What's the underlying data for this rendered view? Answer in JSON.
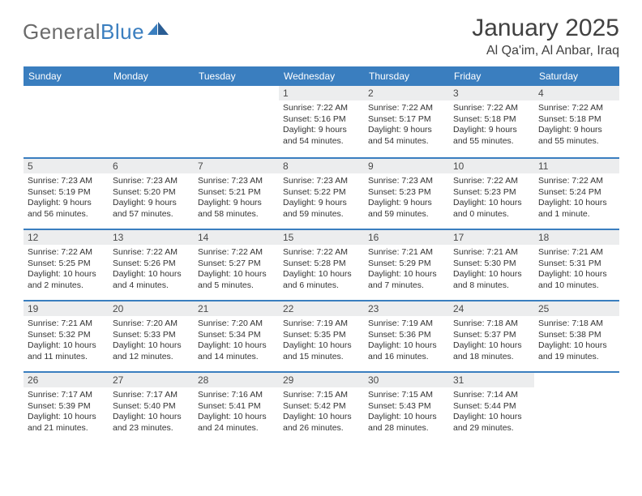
{
  "brand": {
    "name_part1": "General",
    "name_part2": "Blue"
  },
  "title": "January 2025",
  "location": "Al Qa'im, Al Anbar, Iraq",
  "colors": {
    "header_bg": "#3a7ebf",
    "header_text": "#ffffff",
    "daybar_bg": "#ecedee",
    "week_divider": "#3a7ebf",
    "text": "#333333",
    "logo_gray": "#6b6b6b",
    "logo_blue": "#3a7ebf",
    "page_bg": "#ffffff"
  },
  "typography": {
    "title_fontsize": 30,
    "location_fontsize": 16,
    "dayhead_fontsize": 12,
    "info_fontsize": 10.5
  },
  "day_headers": [
    "Sunday",
    "Monday",
    "Tuesday",
    "Wednesday",
    "Thursday",
    "Friday",
    "Saturday"
  ],
  "weeks": [
    [
      {
        "empty": true
      },
      {
        "empty": true
      },
      {
        "empty": true
      },
      {
        "day": "1",
        "sunrise": "Sunrise: 7:22 AM",
        "sunset": "Sunset: 5:16 PM",
        "daylight1": "Daylight: 9 hours",
        "daylight2": "and 54 minutes."
      },
      {
        "day": "2",
        "sunrise": "Sunrise: 7:22 AM",
        "sunset": "Sunset: 5:17 PM",
        "daylight1": "Daylight: 9 hours",
        "daylight2": "and 54 minutes."
      },
      {
        "day": "3",
        "sunrise": "Sunrise: 7:22 AM",
        "sunset": "Sunset: 5:18 PM",
        "daylight1": "Daylight: 9 hours",
        "daylight2": "and 55 minutes."
      },
      {
        "day": "4",
        "sunrise": "Sunrise: 7:22 AM",
        "sunset": "Sunset: 5:18 PM",
        "daylight1": "Daylight: 9 hours",
        "daylight2": "and 55 minutes."
      }
    ],
    [
      {
        "day": "5",
        "sunrise": "Sunrise: 7:23 AM",
        "sunset": "Sunset: 5:19 PM",
        "daylight1": "Daylight: 9 hours",
        "daylight2": "and 56 minutes."
      },
      {
        "day": "6",
        "sunrise": "Sunrise: 7:23 AM",
        "sunset": "Sunset: 5:20 PM",
        "daylight1": "Daylight: 9 hours",
        "daylight2": "and 57 minutes."
      },
      {
        "day": "7",
        "sunrise": "Sunrise: 7:23 AM",
        "sunset": "Sunset: 5:21 PM",
        "daylight1": "Daylight: 9 hours",
        "daylight2": "and 58 minutes."
      },
      {
        "day": "8",
        "sunrise": "Sunrise: 7:23 AM",
        "sunset": "Sunset: 5:22 PM",
        "daylight1": "Daylight: 9 hours",
        "daylight2": "and 59 minutes."
      },
      {
        "day": "9",
        "sunrise": "Sunrise: 7:23 AM",
        "sunset": "Sunset: 5:23 PM",
        "daylight1": "Daylight: 9 hours",
        "daylight2": "and 59 minutes."
      },
      {
        "day": "10",
        "sunrise": "Sunrise: 7:22 AM",
        "sunset": "Sunset: 5:23 PM",
        "daylight1": "Daylight: 10 hours",
        "daylight2": "and 0 minutes."
      },
      {
        "day": "11",
        "sunrise": "Sunrise: 7:22 AM",
        "sunset": "Sunset: 5:24 PM",
        "daylight1": "Daylight: 10 hours",
        "daylight2": "and 1 minute."
      }
    ],
    [
      {
        "day": "12",
        "sunrise": "Sunrise: 7:22 AM",
        "sunset": "Sunset: 5:25 PM",
        "daylight1": "Daylight: 10 hours",
        "daylight2": "and 2 minutes."
      },
      {
        "day": "13",
        "sunrise": "Sunrise: 7:22 AM",
        "sunset": "Sunset: 5:26 PM",
        "daylight1": "Daylight: 10 hours",
        "daylight2": "and 4 minutes."
      },
      {
        "day": "14",
        "sunrise": "Sunrise: 7:22 AM",
        "sunset": "Sunset: 5:27 PM",
        "daylight1": "Daylight: 10 hours",
        "daylight2": "and 5 minutes."
      },
      {
        "day": "15",
        "sunrise": "Sunrise: 7:22 AM",
        "sunset": "Sunset: 5:28 PM",
        "daylight1": "Daylight: 10 hours",
        "daylight2": "and 6 minutes."
      },
      {
        "day": "16",
        "sunrise": "Sunrise: 7:21 AM",
        "sunset": "Sunset: 5:29 PM",
        "daylight1": "Daylight: 10 hours",
        "daylight2": "and 7 minutes."
      },
      {
        "day": "17",
        "sunrise": "Sunrise: 7:21 AM",
        "sunset": "Sunset: 5:30 PM",
        "daylight1": "Daylight: 10 hours",
        "daylight2": "and 8 minutes."
      },
      {
        "day": "18",
        "sunrise": "Sunrise: 7:21 AM",
        "sunset": "Sunset: 5:31 PM",
        "daylight1": "Daylight: 10 hours",
        "daylight2": "and 10 minutes."
      }
    ],
    [
      {
        "day": "19",
        "sunrise": "Sunrise: 7:21 AM",
        "sunset": "Sunset: 5:32 PM",
        "daylight1": "Daylight: 10 hours",
        "daylight2": "and 11 minutes."
      },
      {
        "day": "20",
        "sunrise": "Sunrise: 7:20 AM",
        "sunset": "Sunset: 5:33 PM",
        "daylight1": "Daylight: 10 hours",
        "daylight2": "and 12 minutes."
      },
      {
        "day": "21",
        "sunrise": "Sunrise: 7:20 AM",
        "sunset": "Sunset: 5:34 PM",
        "daylight1": "Daylight: 10 hours",
        "daylight2": "and 14 minutes."
      },
      {
        "day": "22",
        "sunrise": "Sunrise: 7:19 AM",
        "sunset": "Sunset: 5:35 PM",
        "daylight1": "Daylight: 10 hours",
        "daylight2": "and 15 minutes."
      },
      {
        "day": "23",
        "sunrise": "Sunrise: 7:19 AM",
        "sunset": "Sunset: 5:36 PM",
        "daylight1": "Daylight: 10 hours",
        "daylight2": "and 16 minutes."
      },
      {
        "day": "24",
        "sunrise": "Sunrise: 7:18 AM",
        "sunset": "Sunset: 5:37 PM",
        "daylight1": "Daylight: 10 hours",
        "daylight2": "and 18 minutes."
      },
      {
        "day": "25",
        "sunrise": "Sunrise: 7:18 AM",
        "sunset": "Sunset: 5:38 PM",
        "daylight1": "Daylight: 10 hours",
        "daylight2": "and 19 minutes."
      }
    ],
    [
      {
        "day": "26",
        "sunrise": "Sunrise: 7:17 AM",
        "sunset": "Sunset: 5:39 PM",
        "daylight1": "Daylight: 10 hours",
        "daylight2": "and 21 minutes."
      },
      {
        "day": "27",
        "sunrise": "Sunrise: 7:17 AM",
        "sunset": "Sunset: 5:40 PM",
        "daylight1": "Daylight: 10 hours",
        "daylight2": "and 23 minutes."
      },
      {
        "day": "28",
        "sunrise": "Sunrise: 7:16 AM",
        "sunset": "Sunset: 5:41 PM",
        "daylight1": "Daylight: 10 hours",
        "daylight2": "and 24 minutes."
      },
      {
        "day": "29",
        "sunrise": "Sunrise: 7:15 AM",
        "sunset": "Sunset: 5:42 PM",
        "daylight1": "Daylight: 10 hours",
        "daylight2": "and 26 minutes."
      },
      {
        "day": "30",
        "sunrise": "Sunrise: 7:15 AM",
        "sunset": "Sunset: 5:43 PM",
        "daylight1": "Daylight: 10 hours",
        "daylight2": "and 28 minutes."
      },
      {
        "day": "31",
        "sunrise": "Sunrise: 7:14 AM",
        "sunset": "Sunset: 5:44 PM",
        "daylight1": "Daylight: 10 hours",
        "daylight2": "and 29 minutes."
      },
      {
        "empty": true
      }
    ]
  ]
}
